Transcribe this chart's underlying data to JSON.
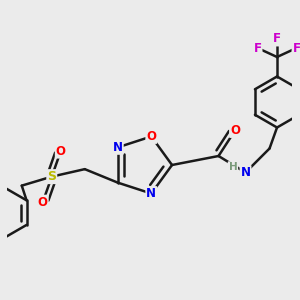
{
  "bg_color": "#ebebeb",
  "bond_color": "#1a1a1a",
  "bond_width": 1.8,
  "atom_colors": {
    "N": "#0000ee",
    "O": "#ff0000",
    "S": "#bbbb00",
    "F": "#cc00cc",
    "H_gray": "#7a9a7a"
  },
  "font_size": 9,
  "fig_size": [
    3.0,
    3.0
  ],
  "dpi": 100
}
